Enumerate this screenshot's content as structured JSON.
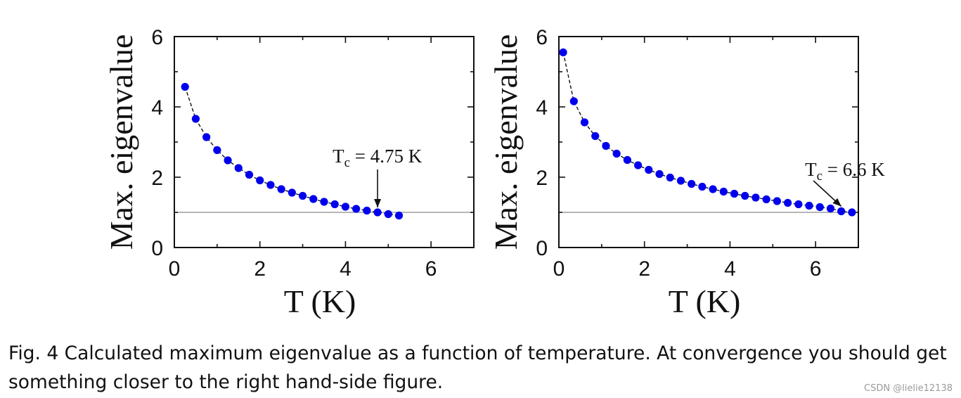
{
  "chart_data": [
    {
      "type": "line",
      "marker": "circle",
      "xlabel": "T (K)",
      "ylabel": "Max. eigenvalue",
      "xlim": [
        0,
        7
      ],
      "ylim": [
        0,
        6
      ],
      "xticks": [
        "0",
        "2",
        "4",
        "6"
      ],
      "yticks": [
        "0",
        "2",
        "4",
        "6"
      ],
      "reference_line": 1,
      "series": [
        {
          "name": "max eigenvalue",
          "color": "#0000ee",
          "x": [
            0.25,
            0.5,
            0.75,
            1.0,
            1.25,
            1.5,
            1.75,
            2.0,
            2.25,
            2.5,
            2.75,
            3.0,
            3.25,
            3.5,
            3.75,
            4.0,
            4.25,
            4.5,
            4.75,
            5.0,
            5.25
          ],
          "y": [
            4.57,
            3.66,
            3.14,
            2.77,
            2.48,
            2.26,
            2.07,
            1.91,
            1.78,
            1.66,
            1.56,
            1.47,
            1.38,
            1.3,
            1.23,
            1.16,
            1.1,
            1.05,
            1.0,
            0.95,
            0.91
          ]
        }
      ],
      "annotation": {
        "T": "T",
        "sub": "c",
        "rest": " = 4.75 K",
        "target": [
          4.75,
          1.0
        ],
        "from": [
          4.75,
          2.22
        ]
      }
    },
    {
      "type": "line",
      "marker": "circle",
      "xlabel": "T (K)",
      "ylabel": "Max. eigenvalue",
      "xlim": [
        0,
        7
      ],
      "ylim": [
        0,
        6
      ],
      "xticks": [
        "0",
        "2",
        "4",
        "6"
      ],
      "yticks": [
        "0",
        "2",
        "4",
        "6"
      ],
      "reference_line": 1,
      "series": [
        {
          "name": "max eigenvalue",
          "color": "#0000ee",
          "x": [
            0.1,
            0.35,
            0.6,
            0.85,
            1.1,
            1.35,
            1.6,
            1.85,
            2.1,
            2.35,
            2.6,
            2.85,
            3.1,
            3.35,
            3.6,
            3.85,
            4.1,
            4.35,
            4.6,
            4.85,
            5.1,
            5.35,
            5.6,
            5.85,
            6.1,
            6.35,
            6.6,
            6.85
          ],
          "y": [
            5.55,
            4.16,
            3.56,
            3.17,
            2.89,
            2.67,
            2.49,
            2.34,
            2.21,
            2.09,
            1.99,
            1.9,
            1.81,
            1.73,
            1.66,
            1.59,
            1.53,
            1.47,
            1.42,
            1.37,
            1.32,
            1.27,
            1.23,
            1.19,
            1.15,
            1.11,
            1.03,
            1.0
          ]
        }
      ],
      "annotation": {
        "T": "T",
        "sub": "c",
        "rest": " = 6.6 K",
        "target": [
          6.6,
          1.03
        ],
        "from": [
          5.95,
          1.9
        ]
      }
    }
  ],
  "caption": "Fig. 4 Calculated maximum eigenvalue as a function of temperature. At convergence you should get something closer to the right hand-side figure.",
  "watermark": "CSDN @lielie12138"
}
